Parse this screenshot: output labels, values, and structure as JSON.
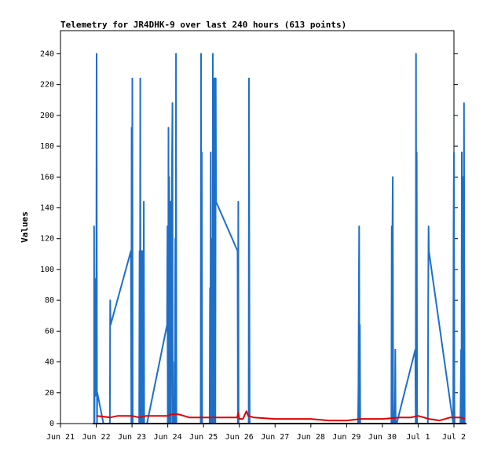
{
  "chart_data": {
    "type": "line",
    "title": "Telemetry for JR4DHK-9 over last 240 hours (613 points)",
    "xlabel": "",
    "ylabel": "Values",
    "ylim": [
      0,
      255
    ],
    "xlim": [
      0,
      11
    ],
    "x_unit": "days from Jun 21 00:00",
    "x_tick_labels": [
      "Jun 21",
      "Jun 22",
      "Jun 23",
      "Jun 24",
      "Jun 25",
      "Jun 26",
      "Jun 27",
      "Jun 28",
      "Jun 29",
      "Jun 30",
      "Jul 1",
      "Jul 2"
    ],
    "x_tick_values": [
      0,
      1,
      2,
      3,
      4,
      5,
      6,
      7,
      8,
      9,
      10,
      11
    ],
    "y_ticks": [
      0,
      20,
      40,
      60,
      80,
      100,
      120,
      140,
      160,
      180,
      200,
      220,
      240
    ],
    "grid": false,
    "colors": {
      "series_blue": "#1e6fc8",
      "series_red": "#e00000",
      "series_black": "#000000"
    },
    "series": [
      {
        "color": "#1e6fc8",
        "points": [
          [
            0.94,
            0
          ],
          [
            0.94,
            128
          ],
          [
            0.95,
            0
          ],
          [
            0.96,
            94
          ],
          [
            0.97,
            56
          ],
          [
            0.98,
            18
          ],
          [
            1.0,
            32
          ],
          [
            1.01,
            240
          ],
          [
            1.02,
            0
          ],
          [
            1.03,
            20
          ],
          [
            1.2,
            0
          ],
          [
            1.38,
            0
          ],
          [
            1.39,
            80
          ],
          [
            1.4,
            64
          ],
          [
            1.97,
            112
          ],
          [
            1.98,
            0
          ],
          [
            1.99,
            192
          ],
          [
            2.0,
            32
          ],
          [
            2.01,
            224
          ],
          [
            2.02,
            0
          ],
          [
            2.2,
            0
          ],
          [
            2.21,
            112
          ],
          [
            2.22,
            0
          ],
          [
            2.23,
            224
          ],
          [
            2.24,
            0
          ],
          [
            2.26,
            0
          ],
          [
            2.27,
            112
          ],
          [
            2.28,
            0
          ],
          [
            2.29,
            112
          ],
          [
            2.3,
            0
          ],
          [
            2.32,
            0
          ],
          [
            2.33,
            144
          ],
          [
            2.34,
            0
          ],
          [
            2.42,
            0
          ],
          [
            2.98,
            64
          ],
          [
            2.99,
            128
          ],
          [
            3.0,
            0
          ],
          [
            3.01,
            0
          ],
          [
            3.02,
            192
          ],
          [
            3.03,
            0
          ],
          [
            3.04,
            160
          ],
          [
            3.05,
            64
          ],
          [
            3.06,
            0
          ],
          [
            3.08,
            144
          ],
          [
            3.09,
            0
          ],
          [
            3.12,
            176
          ],
          [
            3.13,
            208
          ],
          [
            3.14,
            0
          ],
          [
            3.15,
            40
          ],
          [
            3.16,
            0
          ],
          [
            3.2,
            0
          ],
          [
            3.21,
            120
          ],
          [
            3.22,
            0
          ],
          [
            3.23,
            240
          ],
          [
            3.24,
            0
          ],
          [
            3.92,
            0
          ],
          [
            3.93,
            240
          ],
          [
            3.94,
            0
          ],
          [
            3.95,
            176
          ],
          [
            3.96,
            0
          ],
          [
            4.17,
            0
          ],
          [
            4.18,
            88
          ],
          [
            4.19,
            0
          ],
          [
            4.2,
            176
          ],
          [
            4.21,
            0
          ],
          [
            4.23,
            0
          ],
          [
            4.24,
            120
          ],
          [
            4.25,
            0
          ],
          [
            4.26,
            240
          ],
          [
            4.27,
            0
          ],
          [
            4.3,
            224
          ],
          [
            4.31,
            0
          ],
          [
            4.32,
            224
          ],
          [
            4.33,
            0
          ],
          [
            4.34,
            224
          ],
          [
            4.35,
            144
          ],
          [
            4.95,
            112
          ],
          [
            4.96,
            0
          ],
          [
            4.97,
            144
          ],
          [
            4.98,
            0
          ],
          [
            5.26,
            0
          ],
          [
            5.27,
            224
          ],
          [
            5.28,
            96
          ],
          [
            5.29,
            0
          ],
          [
            8.32,
            0
          ],
          [
            8.33,
            24
          ],
          [
            8.34,
            72
          ],
          [
            8.35,
            128
          ],
          [
            8.36,
            0
          ],
          [
            8.37,
            64
          ],
          [
            8.38,
            0
          ],
          [
            9.25,
            0
          ],
          [
            9.26,
            128
          ],
          [
            9.27,
            0
          ],
          [
            9.28,
            128
          ],
          [
            9.29,
            160
          ],
          [
            9.3,
            16
          ],
          [
            9.31,
            0
          ],
          [
            9.35,
            0
          ],
          [
            9.36,
            48
          ],
          [
            9.37,
            0
          ],
          [
            9.4,
            0
          ],
          [
            9.92,
            48
          ],
          [
            9.93,
            0
          ],
          [
            9.94,
            240
          ],
          [
            9.95,
            0
          ],
          [
            9.96,
            176
          ],
          [
            9.97,
            0
          ],
          [
            10.27,
            0
          ],
          [
            10.28,
            80
          ],
          [
            10.29,
            128
          ],
          [
            10.3,
            112
          ],
          [
            10.98,
            0
          ],
          [
            10.99,
            128
          ],
          [
            11.0,
            176
          ],
          [
            11.01,
            16
          ],
          [
            11.02,
            0
          ],
          [
            11.18,
            0
          ],
          [
            11.19,
            24
          ],
          [
            11.2,
            48
          ],
          [
            11.21,
            0
          ],
          [
            11.22,
            176
          ],
          [
            11.23,
            0
          ],
          [
            11.25,
            0
          ],
          [
            11.26,
            160
          ],
          [
            11.27,
            0
          ],
          [
            11.28,
            208
          ],
          [
            11.29,
            96
          ],
          [
            11.3,
            0
          ]
        ]
      },
      {
        "color": "#e00000",
        "points": [
          [
            1.0,
            5
          ],
          [
            1.4,
            4
          ],
          [
            1.6,
            5
          ],
          [
            2.0,
            5
          ],
          [
            2.2,
            4
          ],
          [
            2.4,
            5
          ],
          [
            2.8,
            5
          ],
          [
            3.0,
            5
          ],
          [
            3.1,
            6
          ],
          [
            3.3,
            6
          ],
          [
            3.6,
            4
          ],
          [
            4.0,
            4
          ],
          [
            4.4,
            4
          ],
          [
            4.8,
            4
          ],
          [
            4.94,
            4
          ],
          [
            4.97,
            7
          ],
          [
            5.0,
            3
          ],
          [
            5.1,
            3
          ],
          [
            5.16,
            6
          ],
          [
            5.2,
            8
          ],
          [
            5.25,
            5
          ],
          [
            5.4,
            4
          ],
          [
            6.0,
            3
          ],
          [
            7.0,
            3
          ],
          [
            7.5,
            2
          ],
          [
            8.0,
            2
          ],
          [
            8.4,
            3
          ],
          [
            9.0,
            3
          ],
          [
            9.5,
            4
          ],
          [
            9.8,
            4
          ],
          [
            10.0,
            5
          ],
          [
            10.3,
            3
          ],
          [
            10.6,
            2
          ],
          [
            10.9,
            4
          ],
          [
            11.2,
            4
          ],
          [
            11.3,
            3
          ]
        ]
      },
      {
        "color": "#000000",
        "points": [
          [
            0.9,
            0
          ],
          [
            11.35,
            0
          ]
        ]
      }
    ]
  }
}
